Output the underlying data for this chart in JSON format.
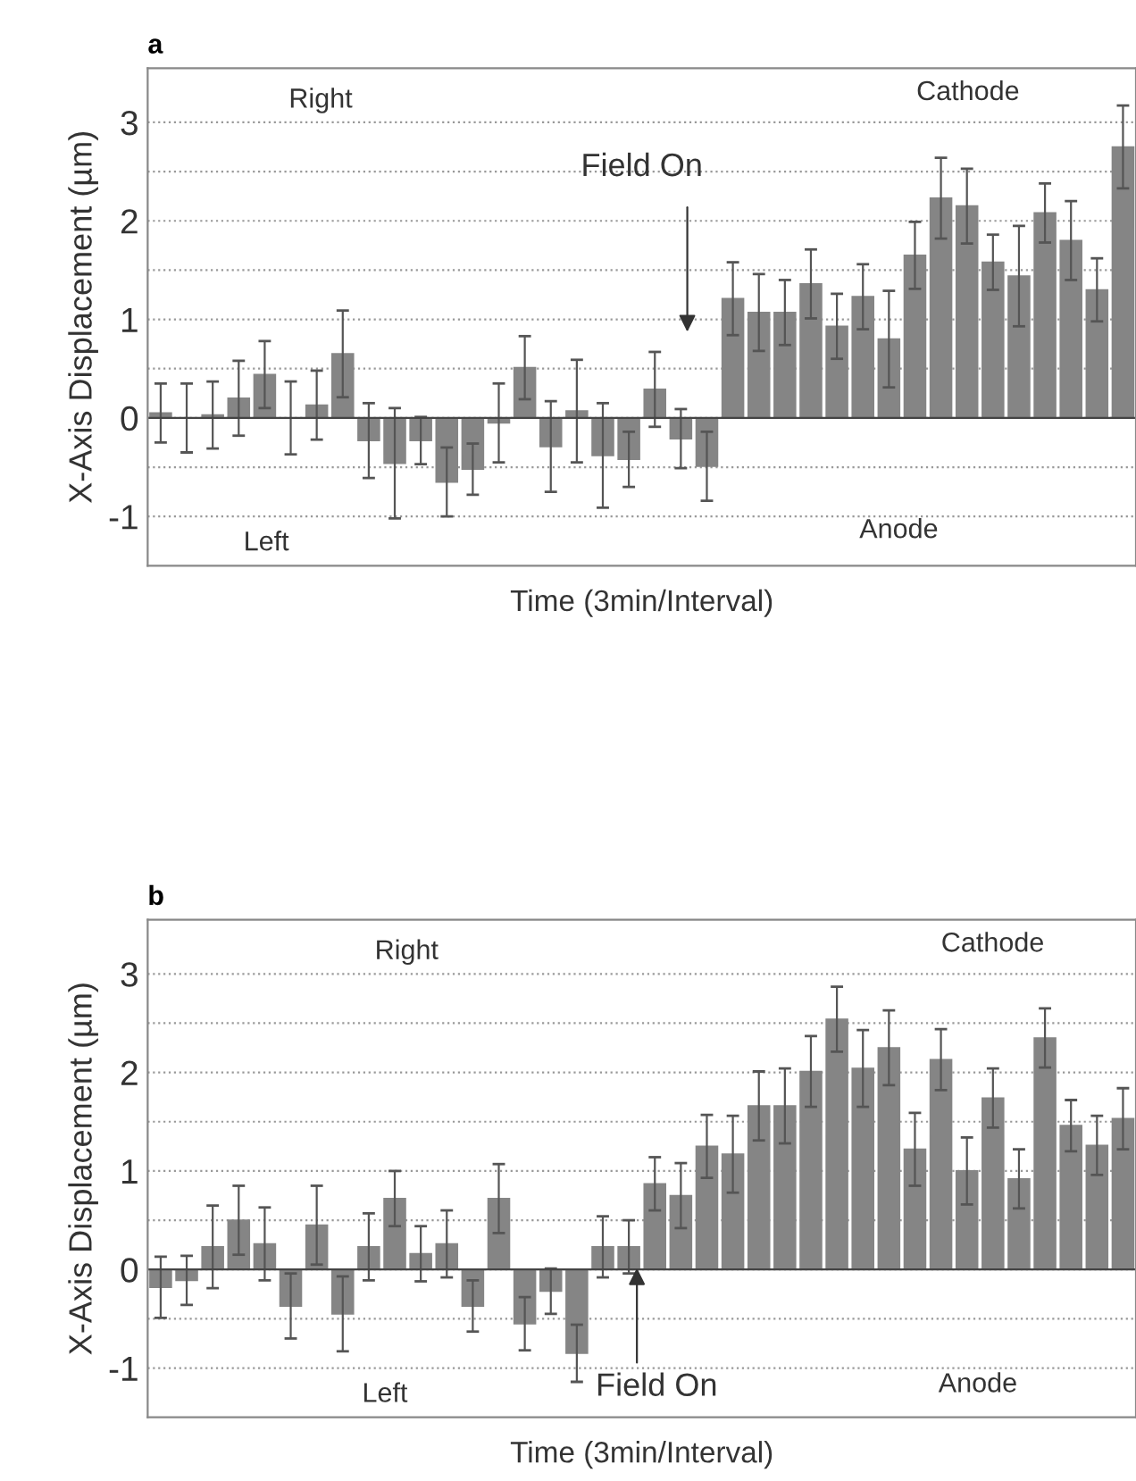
{
  "chart_data": [
    {
      "type": "bar",
      "title": "a",
      "xlabel": "Time (3min/Interval)",
      "ylabel": "X-Axis Displacement (µm)",
      "categories": [
        null,
        null,
        null,
        null,
        null,
        null,
        null,
        null,
        null,
        null,
        null,
        null,
        null,
        null,
        null,
        null,
        null,
        null,
        null,
        null,
        null,
        null,
        null,
        null,
        null,
        null,
        null,
        null,
        null,
        null,
        null,
        null,
        null,
        null,
        null,
        null,
        null,
        null
      ],
      "values": [
        0.05,
        0.0,
        0.03,
        0.2,
        0.44,
        0.0,
        0.13,
        0.65,
        -0.23,
        -0.46,
        -0.23,
        -0.65,
        -0.52,
        -0.05,
        0.51,
        -0.29,
        0.07,
        -0.38,
        -0.42,
        0.29,
        -0.21,
        -0.49,
        1.21,
        1.07,
        1.07,
        1.36,
        0.93,
        1.23,
        0.8,
        1.65,
        2.23,
        2.15,
        1.58,
        1.44,
        2.08,
        1.8,
        1.3,
        2.75
      ],
      "errors": [
        0.3,
        0.35,
        0.34,
        0.38,
        0.34,
        0.37,
        0.35,
        0.44,
        0.38,
        0.56,
        0.24,
        0.35,
        0.26,
        0.4,
        0.32,
        0.46,
        0.52,
        0.53,
        0.28,
        0.38,
        0.3,
        0.35,
        0.37,
        0.39,
        0.33,
        0.35,
        0.33,
        0.33,
        0.49,
        0.34,
        0.41,
        0.38,
        0.28,
        0.51,
        0.3,
        0.4,
        0.32,
        0.42
      ],
      "color": "#858585",
      "ylim": [
        -1.5,
        3.55
      ],
      "yticks": [
        -1,
        {
          "value": -0.5,
          "label": null
        },
        0,
        {
          "value": 0.5,
          "label": null
        },
        1,
        {
          "value": 1.5,
          "label": null
        },
        2,
        {
          "value": 2.5,
          "label": null
        },
        3
      ],
      "grid": "y",
      "annotations": [
        "Right",
        "Left",
        "Cathode",
        "Anode",
        "Field On"
      ]
    },
    {
      "type": "bar",
      "title": "b",
      "xlabel": "Time (3min/Interval)",
      "ylabel": "X-Axis Displacement (µm)",
      "categories": [
        null,
        null,
        null,
        null,
        null,
        null,
        null,
        null,
        null,
        null,
        null,
        null,
        null,
        null,
        null,
        null,
        null,
        null,
        null,
        null,
        null,
        null,
        null,
        null,
        null,
        null,
        null,
        null,
        null,
        null,
        null,
        null,
        null,
        null,
        null,
        null,
        null,
        null
      ],
      "values": [
        -0.18,
        -0.11,
        0.23,
        0.5,
        0.26,
        -0.37,
        0.45,
        -0.45,
        0.23,
        0.72,
        0.16,
        0.26,
        -0.37,
        0.72,
        -0.55,
        -0.22,
        -0.85,
        0.23,
        0.23,
        0.87,
        0.75,
        1.25,
        1.17,
        1.66,
        1.66,
        2.01,
        2.54,
        2.04,
        2.25,
        1.22,
        2.13,
        1.0,
        1.74,
        0.92,
        2.35,
        1.46,
        1.26,
        1.53
      ],
      "errors": [
        0.31,
        0.25,
        0.42,
        0.35,
        0.37,
        0.33,
        0.4,
        0.38,
        0.34,
        0.28,
        0.28,
        0.34,
        0.26,
        0.35,
        0.27,
        0.23,
        0.29,
        0.31,
        0.27,
        0.27,
        0.33,
        0.32,
        0.39,
        0.35,
        0.38,
        0.36,
        0.33,
        0.39,
        0.38,
        0.37,
        0.31,
        0.34,
        0.3,
        0.3,
        0.3,
        0.26,
        0.3,
        0.31
      ],
      "color": "#858585",
      "ylim": [
        -1.5,
        3.55
      ],
      "yticks": [
        -1,
        {
          "value": -0.5,
          "label": null
        },
        0,
        {
          "value": 0.5,
          "label": null
        },
        1,
        {
          "value": 1.5,
          "label": null
        },
        2,
        {
          "value": 2.5,
          "label": null
        },
        3
      ],
      "grid": "y",
      "annotations": [
        "Right",
        "Left",
        "Cathode",
        "Anode",
        "Field On"
      ]
    }
  ]
}
